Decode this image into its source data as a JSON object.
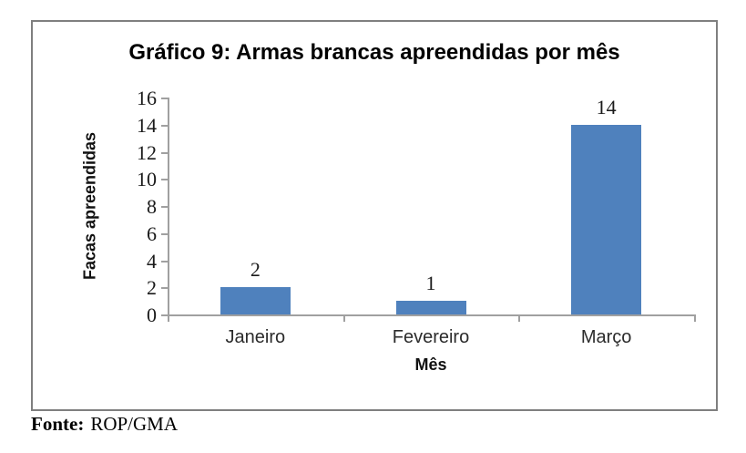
{
  "figure": {
    "source_label": "Fonte:",
    "source_text": "ROP/GMA"
  },
  "chart_data": {
    "type": "bar",
    "title": "Gráfico 9: Armas brancas apreendidas por mês",
    "categories": [
      "Janeiro",
      "Fevereiro",
      "Março"
    ],
    "values": [
      2,
      1,
      14
    ],
    "data_labels": [
      "2",
      "1",
      "14"
    ],
    "xlabel": "Mês",
    "ylabel": "Facas apreendidas",
    "ylim": [
      0,
      16
    ],
    "yticks": [
      0,
      2,
      4,
      6,
      8,
      10,
      12,
      14,
      16
    ],
    "grid": false,
    "legend": false,
    "colors": {
      "bar": "#4F81BD",
      "axis": "#A0A0A0",
      "frame_border": "#7F7F7F",
      "text": "#1A1A1A"
    }
  }
}
